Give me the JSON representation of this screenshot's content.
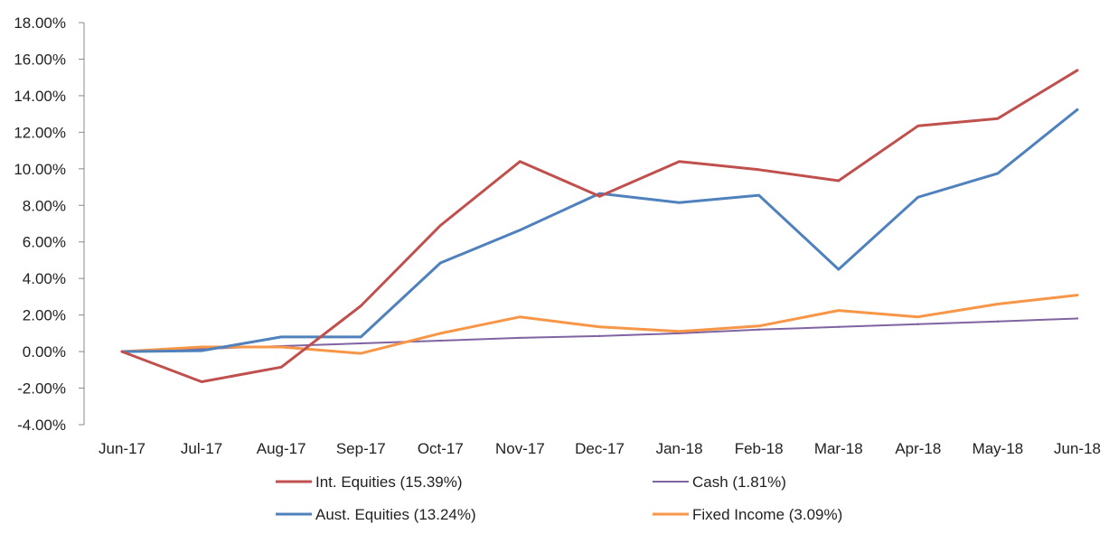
{
  "chart_data": {
    "type": "line",
    "title": "",
    "xlabel": "",
    "ylabel": "",
    "categories": [
      "Jun-17",
      "Jul-17",
      "Aug-17",
      "Sep-17",
      "Oct-17",
      "Nov-17",
      "Dec-17",
      "Jan-18",
      "Feb-18",
      "Mar-18",
      "Apr-18",
      "May-18",
      "Jun-18"
    ],
    "ylim": [
      -4,
      18
    ],
    "y_ticks": [
      {
        "value": 18,
        "label": "18.00%"
      },
      {
        "value": 16,
        "label": "16.00%"
      },
      {
        "value": 14,
        "label": "14.00%"
      },
      {
        "value": 12,
        "label": "12.00%"
      },
      {
        "value": 10,
        "label": "10.00%"
      },
      {
        "value": 8,
        "label": "8.00%"
      },
      {
        "value": 6,
        "label": "6.00%"
      },
      {
        "value": 4,
        "label": "4.00%"
      },
      {
        "value": 2,
        "label": "2.00%"
      },
      {
        "value": 0,
        "label": "0.00%"
      },
      {
        "value": -2,
        "label": "-2.00%"
      },
      {
        "value": -4,
        "label": "-4.00%"
      }
    ],
    "grid": false,
    "legend_position": "bottom",
    "series": [
      {
        "key": "cash",
        "name": "Cash (1.81%)",
        "color": "#8064a2",
        "width": 2,
        "values": [
          0,
          0.15,
          0.3,
          0.45,
          0.6,
          0.75,
          0.85,
          1.0,
          1.2,
          1.35,
          1.5,
          1.65,
          1.81
        ]
      },
      {
        "key": "fixed-income",
        "name": "Fixed Income (3.09%)",
        "color": "#f79646",
        "width": 3,
        "values": [
          0,
          0.25,
          0.25,
          -0.1,
          1.0,
          1.9,
          1.35,
          1.1,
          1.4,
          2.25,
          1.9,
          2.6,
          3.09
        ]
      },
      {
        "key": "aust-equities",
        "name": "Aust. Equities (13.24%)",
        "color": "#4f81bd",
        "width": 3,
        "values": [
          0,
          0.05,
          0.8,
          0.8,
          4.85,
          6.65,
          8.65,
          8.15,
          8.55,
          4.5,
          8.45,
          9.75,
          13.24
        ]
      },
      {
        "key": "int-equities",
        "name": "Int. Equities (15.39%)",
        "color": "#c0504d",
        "width": 3,
        "values": [
          0,
          -1.65,
          -0.85,
          2.5,
          6.9,
          10.4,
          8.5,
          10.4,
          9.95,
          9.35,
          12.35,
          12.75,
          15.39
        ]
      }
    ],
    "legend": [
      {
        "key": "int-equities",
        "name": "Int. Equities (15.39%)",
        "color": "#c0504d"
      },
      {
        "key": "cash",
        "name": "Cash (1.81%)",
        "color": "#8064a2"
      },
      {
        "key": "aust-equities",
        "name": "Aust. Equities (13.24%)",
        "color": "#4f81bd"
      },
      {
        "key": "fixed-income",
        "name": "Fixed Income (3.09%)",
        "color": "#f79646"
      }
    ]
  }
}
